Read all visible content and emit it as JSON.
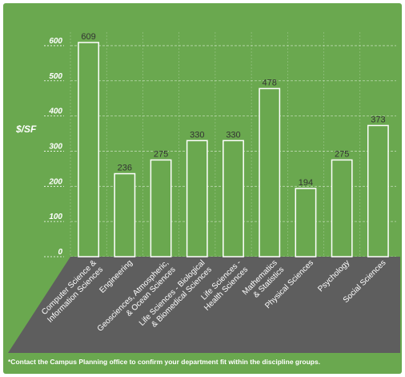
{
  "chart_data": {
    "type": "bar",
    "ylabel": "$/SF",
    "ylim": [
      0,
      650
    ],
    "yticks": [
      0,
      100,
      200,
      300,
      400,
      500,
      600
    ],
    "categories": [
      [
        "Computer Science &",
        "Information Sciences"
      ],
      [
        "Engineering"
      ],
      [
        "Geosciences, Atmospheric,",
        "& Ocean Sciences"
      ],
      [
        "Life Sciences - Biological",
        "& Biomedical Sciences"
      ],
      [
        "Life Sciences -",
        "Health Sciences"
      ],
      [
        "Mathematics",
        "& Statistics"
      ],
      [
        "Physical Sciences"
      ],
      [
        "Psychology"
      ],
      [
        "Social Sciences"
      ]
    ],
    "values": [
      609,
      236,
      275,
      330,
      330,
      478,
      194,
      275,
      373
    ],
    "bar_color": "#6aa84f",
    "background_color": "#6aa84f",
    "category_band_color": "#5e5e5e",
    "grid": "dashed"
  },
  "footnote": "*Contact the Campus Planning office to confirm your department fit within the discipline groups."
}
